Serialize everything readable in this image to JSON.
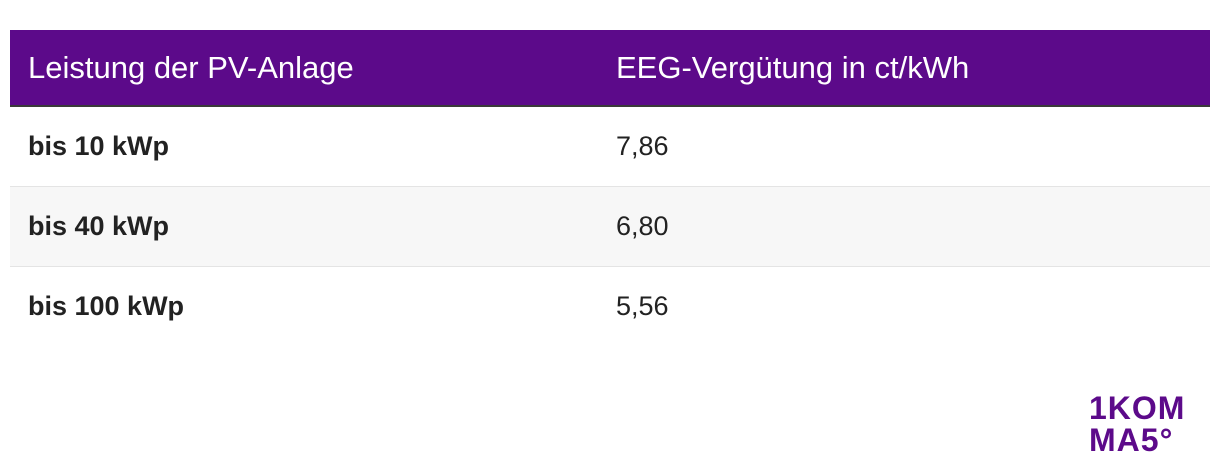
{
  "table": {
    "header": [
      "Leistung der PV-Anlage",
      "EEG-Vergütung in ct/kWh"
    ],
    "rows": [
      [
        "bis 10 kWp",
        "7,86"
      ],
      [
        "bis 40 kWp",
        "6,80"
      ],
      [
        "bis 100 kWp",
        "5,56"
      ]
    ]
  },
  "logo": {
    "line1": "1KOM",
    "line2": "MA5°"
  }
}
